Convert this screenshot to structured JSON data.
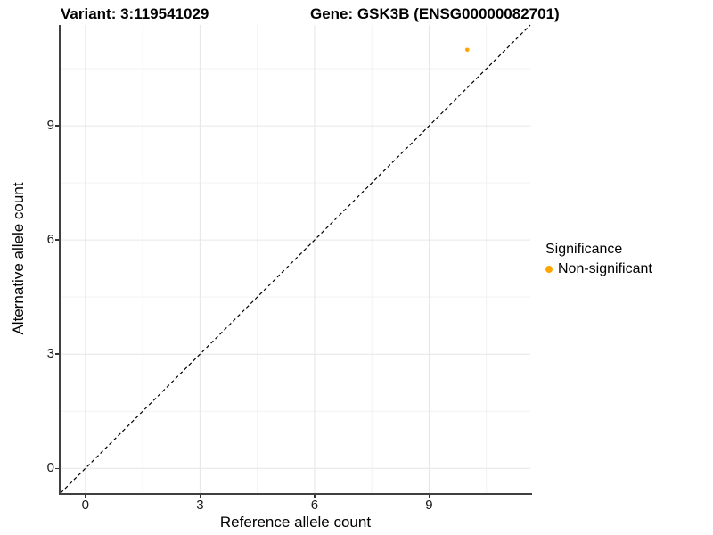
{
  "header": {
    "variant_title": "Variant: 3:119541029",
    "gene_title": "Gene: GSK3B (ENSG00000082701)"
  },
  "legend": {
    "title": "Significance",
    "items": [
      {
        "label": "Non-significant",
        "color": "#FFA500"
      }
    ]
  },
  "colors": {
    "background": "#ffffff",
    "text": "#000000",
    "axis_line": "#404040",
    "tick": "#333333",
    "grid_major": "#e6e6e6",
    "grid_minor": "#f2f2f2",
    "identity_line": "#000000",
    "point": "#FFA500"
  },
  "chart_data": {
    "type": "scatter",
    "title": "Variant: 3:119541029 — Gene: GSK3B (ENSG00000082701)",
    "xlabel": "Reference allele count",
    "ylabel": "Alternative allele count",
    "xlim": [
      -0.65,
      11.65
    ],
    "ylim": [
      -0.65,
      11.65
    ],
    "x_ticks": [
      0,
      3,
      6,
      9
    ],
    "y_ticks": [
      0,
      3,
      6,
      9
    ],
    "x_minor_gridlines": [
      1.5,
      4.5,
      7.5,
      10.5
    ],
    "y_minor_gridlines": [
      1.5,
      4.5,
      7.5,
      10.5
    ],
    "grid": true,
    "legend_position": "right",
    "identity_line": {
      "slope": 1,
      "intercept": 0,
      "style": "dashed"
    },
    "series": [
      {
        "name": "Non-significant",
        "color": "#FFA500",
        "points": [
          {
            "x": 10,
            "y": 11
          }
        ]
      }
    ]
  }
}
